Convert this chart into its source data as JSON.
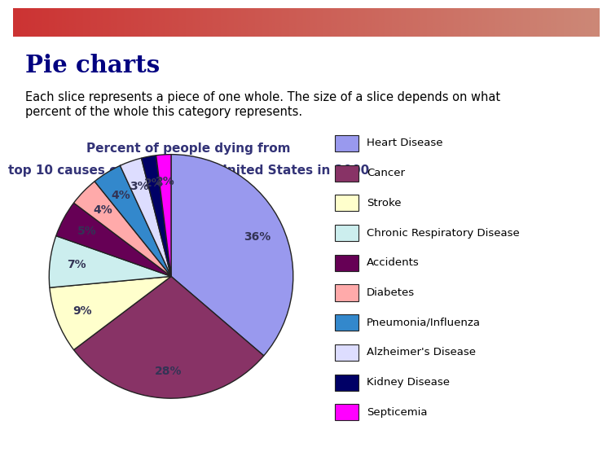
{
  "title_line1": "Percent of people dying from",
  "title_line2": "top 10 causes of death in the United States in 2000",
  "heading": "Pie charts",
  "subheading": "Each slice represents a piece of one whole. The size of a slice depends on what\npercent of the whole this category represents.",
  "labels": [
    "Heart Disease",
    "Cancer",
    "Stroke",
    "Chronic Respiratory Disease",
    "Accidents",
    "Diabetes",
    "Pneumonia/Influenza",
    "Alzheimer's Disease",
    "Kidney Disease",
    "Septicemia"
  ],
  "values": [
    37,
    29,
    9,
    7,
    5,
    4,
    4,
    3,
    2,
    2
  ],
  "pie_colors": [
    "#9999EE",
    "#883366",
    "#FFFFCC",
    "#CCEEEE",
    "#660055",
    "#FFAAAA",
    "#3388CC",
    "#DDDDFF",
    "#000066",
    "#FF00FF"
  ],
  "background_color": "#F5B942",
  "header_bg": "#FFFFFF",
  "heading_color": "#000080",
  "subtext_color": "#000000",
  "title_color": "#333377",
  "pct_color": "#333355",
  "legend_text_color": "#000000",
  "bar_gradient_left": "#CC3333",
  "bar_gradient_right": "#CC8877",
  "pie_edge_color": "#222222"
}
